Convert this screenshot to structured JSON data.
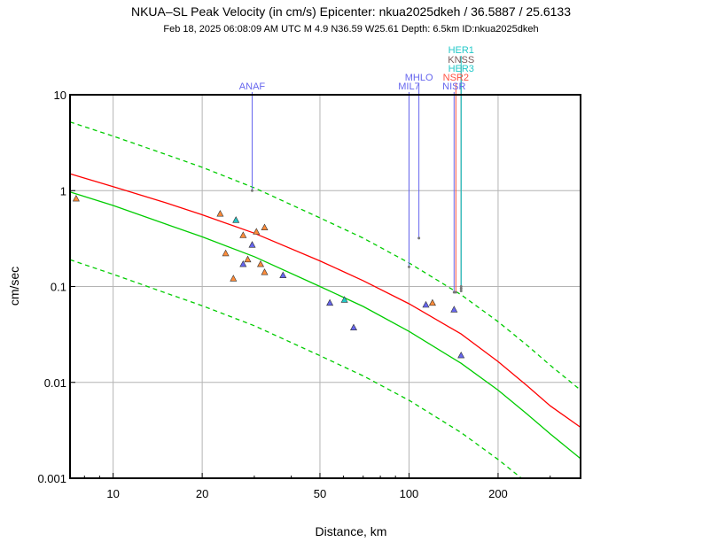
{
  "header": {
    "title": "NKUA–SL Peak Velocity (in cm/s) Epicenter: nkua2025dkeh / 36.5887 / 25.6133",
    "subtitle": "Feb 18, 2025 06:08:09 AM UTC    M 4.9    N36.59 W25.61    Depth: 6.5km    ID:nkua2025dkeh"
  },
  "colors": {
    "curve_median": "#ff0000",
    "curve_other": "#00cc00",
    "grid": "#b4b4b4",
    "triangle_orange": "#ff8c3a",
    "triangle_blue": "#6666ee",
    "triangle_cyan": "#22c8c8",
    "label_blue": "#6666ee",
    "label_cyan": "#22c8c8",
    "label_brown": "#7a5a5a",
    "label_red": "#ff5040"
  },
  "chart_data": {
    "type": "scatter",
    "xscale": "log",
    "yscale": "log",
    "xlabel": "Distance, km",
    "ylabel": "cm/sec",
    "xlim": [
      7.15,
      380
    ],
    "ylim": [
      0.001,
      10
    ],
    "grid": true,
    "xticks": [
      10,
      20,
      50,
      100,
      200
    ],
    "xtick_labels": [
      "10",
      "20",
      "50",
      "100",
      "200"
    ],
    "yticks": [
      0.001,
      0.01,
      0.1,
      1,
      10
    ],
    "ytick_labels": [
      "0.001",
      "0.01",
      "0.1",
      "1",
      "10"
    ],
    "curves": [
      {
        "style": "solid",
        "color": "#ff0000",
        "x": [
          7.15,
          10,
          15,
          20,
          30,
          50,
          70,
          100,
          150,
          200,
          250,
          300,
          380
        ],
        "y": [
          1.5,
          1.1,
          0.75,
          0.56,
          0.36,
          0.185,
          0.115,
          0.066,
          0.032,
          0.0165,
          0.0093,
          0.0057,
          0.0034
        ]
      },
      {
        "style": "solid",
        "color": "#00cc00",
        "x": [
          7.15,
          10,
          15,
          20,
          30,
          50,
          70,
          100,
          150,
          200,
          250,
          300,
          380
        ],
        "y": [
          0.97,
          0.7,
          0.45,
          0.33,
          0.205,
          0.1,
          0.062,
          0.034,
          0.0158,
          0.0083,
          0.0047,
          0.0029,
          0.0016
        ]
      },
      {
        "style": "dashed",
        "color": "#00cc00",
        "x": [
          7.15,
          10,
          15,
          20,
          30,
          50,
          70,
          100,
          150,
          200,
          250,
          300,
          380
        ],
        "y": [
          5.2,
          3.7,
          2.4,
          1.75,
          1.07,
          0.52,
          0.32,
          0.176,
          0.082,
          0.043,
          0.0245,
          0.0151,
          0.0083
        ]
      },
      {
        "style": "dashed",
        "color": "#00cc00",
        "x": [
          7.15,
          10,
          15,
          20,
          30,
          50,
          70,
          100,
          150,
          200,
          240
        ],
        "y": [
          0.19,
          0.134,
          0.086,
          0.063,
          0.039,
          0.019,
          0.0117,
          0.0065,
          0.003,
          0.00157,
          0.001
        ]
      }
    ],
    "points": [
      {
        "x": 7.5,
        "y": 0.82,
        "color": "orange"
      },
      {
        "x": 23,
        "y": 0.57,
        "color": "orange"
      },
      {
        "x": 24,
        "y": 0.22,
        "color": "orange"
      },
      {
        "x": 25.5,
        "y": 0.12,
        "color": "orange"
      },
      {
        "x": 26,
        "y": 0.49,
        "color": "cyan"
      },
      {
        "x": 27.5,
        "y": 0.17,
        "color": "blue"
      },
      {
        "x": 27.5,
        "y": 0.34,
        "color": "orange"
      },
      {
        "x": 28.5,
        "y": 0.19,
        "color": "orange"
      },
      {
        "x": 29.5,
        "y": 0.27,
        "color": "blue"
      },
      {
        "x": 30.5,
        "y": 0.37,
        "color": "orange"
      },
      {
        "x": 31.5,
        "y": 0.17,
        "color": "orange"
      },
      {
        "x": 32.5,
        "y": 0.41,
        "color": "orange"
      },
      {
        "x": 32.5,
        "y": 0.14,
        "color": "orange"
      },
      {
        "x": 37.5,
        "y": 0.13,
        "color": "blue"
      },
      {
        "x": 54,
        "y": 0.067,
        "color": "blue"
      },
      {
        "x": 60.5,
        "y": 0.072,
        "color": "cyan"
      },
      {
        "x": 65,
        "y": 0.037,
        "color": "blue"
      },
      {
        "x": 114,
        "y": 0.064,
        "color": "blue"
      },
      {
        "x": 120,
        "y": 0.067,
        "color": "orange"
      },
      {
        "x": 142,
        "y": 0.057,
        "color": "blue"
      },
      {
        "x": 150,
        "y": 0.019,
        "color": "blue"
      }
    ],
    "stations": [
      {
        "name": "ANAF",
        "x": 29.5,
        "y": 1.0,
        "color": "label_blue",
        "row": 0
      },
      {
        "name": "MIL7",
        "x": 100,
        "y": 0.16,
        "color": "label_blue",
        "row": 0
      },
      {
        "name": "MHLO",
        "x": 108,
        "y": 0.32,
        "color": "label_blue",
        "row": 1
      },
      {
        "name": "NISR",
        "x": 142,
        "y": 0.087,
        "color": "label_blue",
        "row": 0
      },
      {
        "name": "NSR2",
        "x": 144,
        "y": 0.087,
        "color": "label_red",
        "row": 1
      },
      {
        "name": "HER3",
        "x": 150,
        "y": 0.09,
        "color": "label_cyan",
        "row": 2
      },
      {
        "name": "KNSS",
        "x": 150,
        "y": 0.095,
        "color": "label_brown",
        "row": 3
      },
      {
        "name": "HER1",
        "x": 150,
        "y": 0.1,
        "color": "label_cyan",
        "row": 4
      }
    ]
  }
}
